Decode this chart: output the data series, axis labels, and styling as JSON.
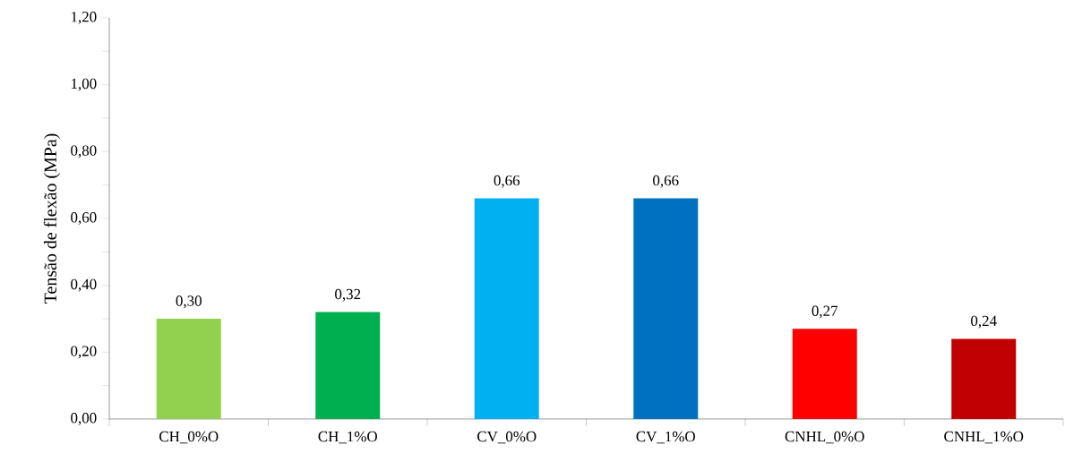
{
  "chart_data": {
    "type": "bar",
    "ylabel": "Tensão de flexão (MPa)",
    "categories": [
      "CH_0%O",
      "CH_1%O",
      "CV_0%O",
      "CV_1%O",
      "CNHL_0%O",
      "CNHL_1%O"
    ],
    "values": [
      0.3,
      0.32,
      0.66,
      0.66,
      0.27,
      0.24
    ],
    "colors": [
      "#92d050",
      "#00b050",
      "#00b0f0",
      "#0070c0",
      "#ff0000",
      "#c00000"
    ],
    "value_labels": [
      "0,30",
      "0,32",
      "0,66",
      "0,66",
      "0,27",
      "0,24"
    ],
    "ylim": [
      0,
      1.2
    ],
    "yticks": [
      {
        "value": 0,
        "label": "0,00"
      },
      {
        "value": 0.2,
        "label": "0,20"
      },
      {
        "value": 0.4,
        "label": "0,40"
      },
      {
        "value": 0.6,
        "label": "0,60"
      },
      {
        "value": 0.8,
        "label": "0,80"
      },
      {
        "value": 1.0,
        "label": "1,00"
      },
      {
        "value": 1.2,
        "label": "1,20"
      }
    ]
  }
}
